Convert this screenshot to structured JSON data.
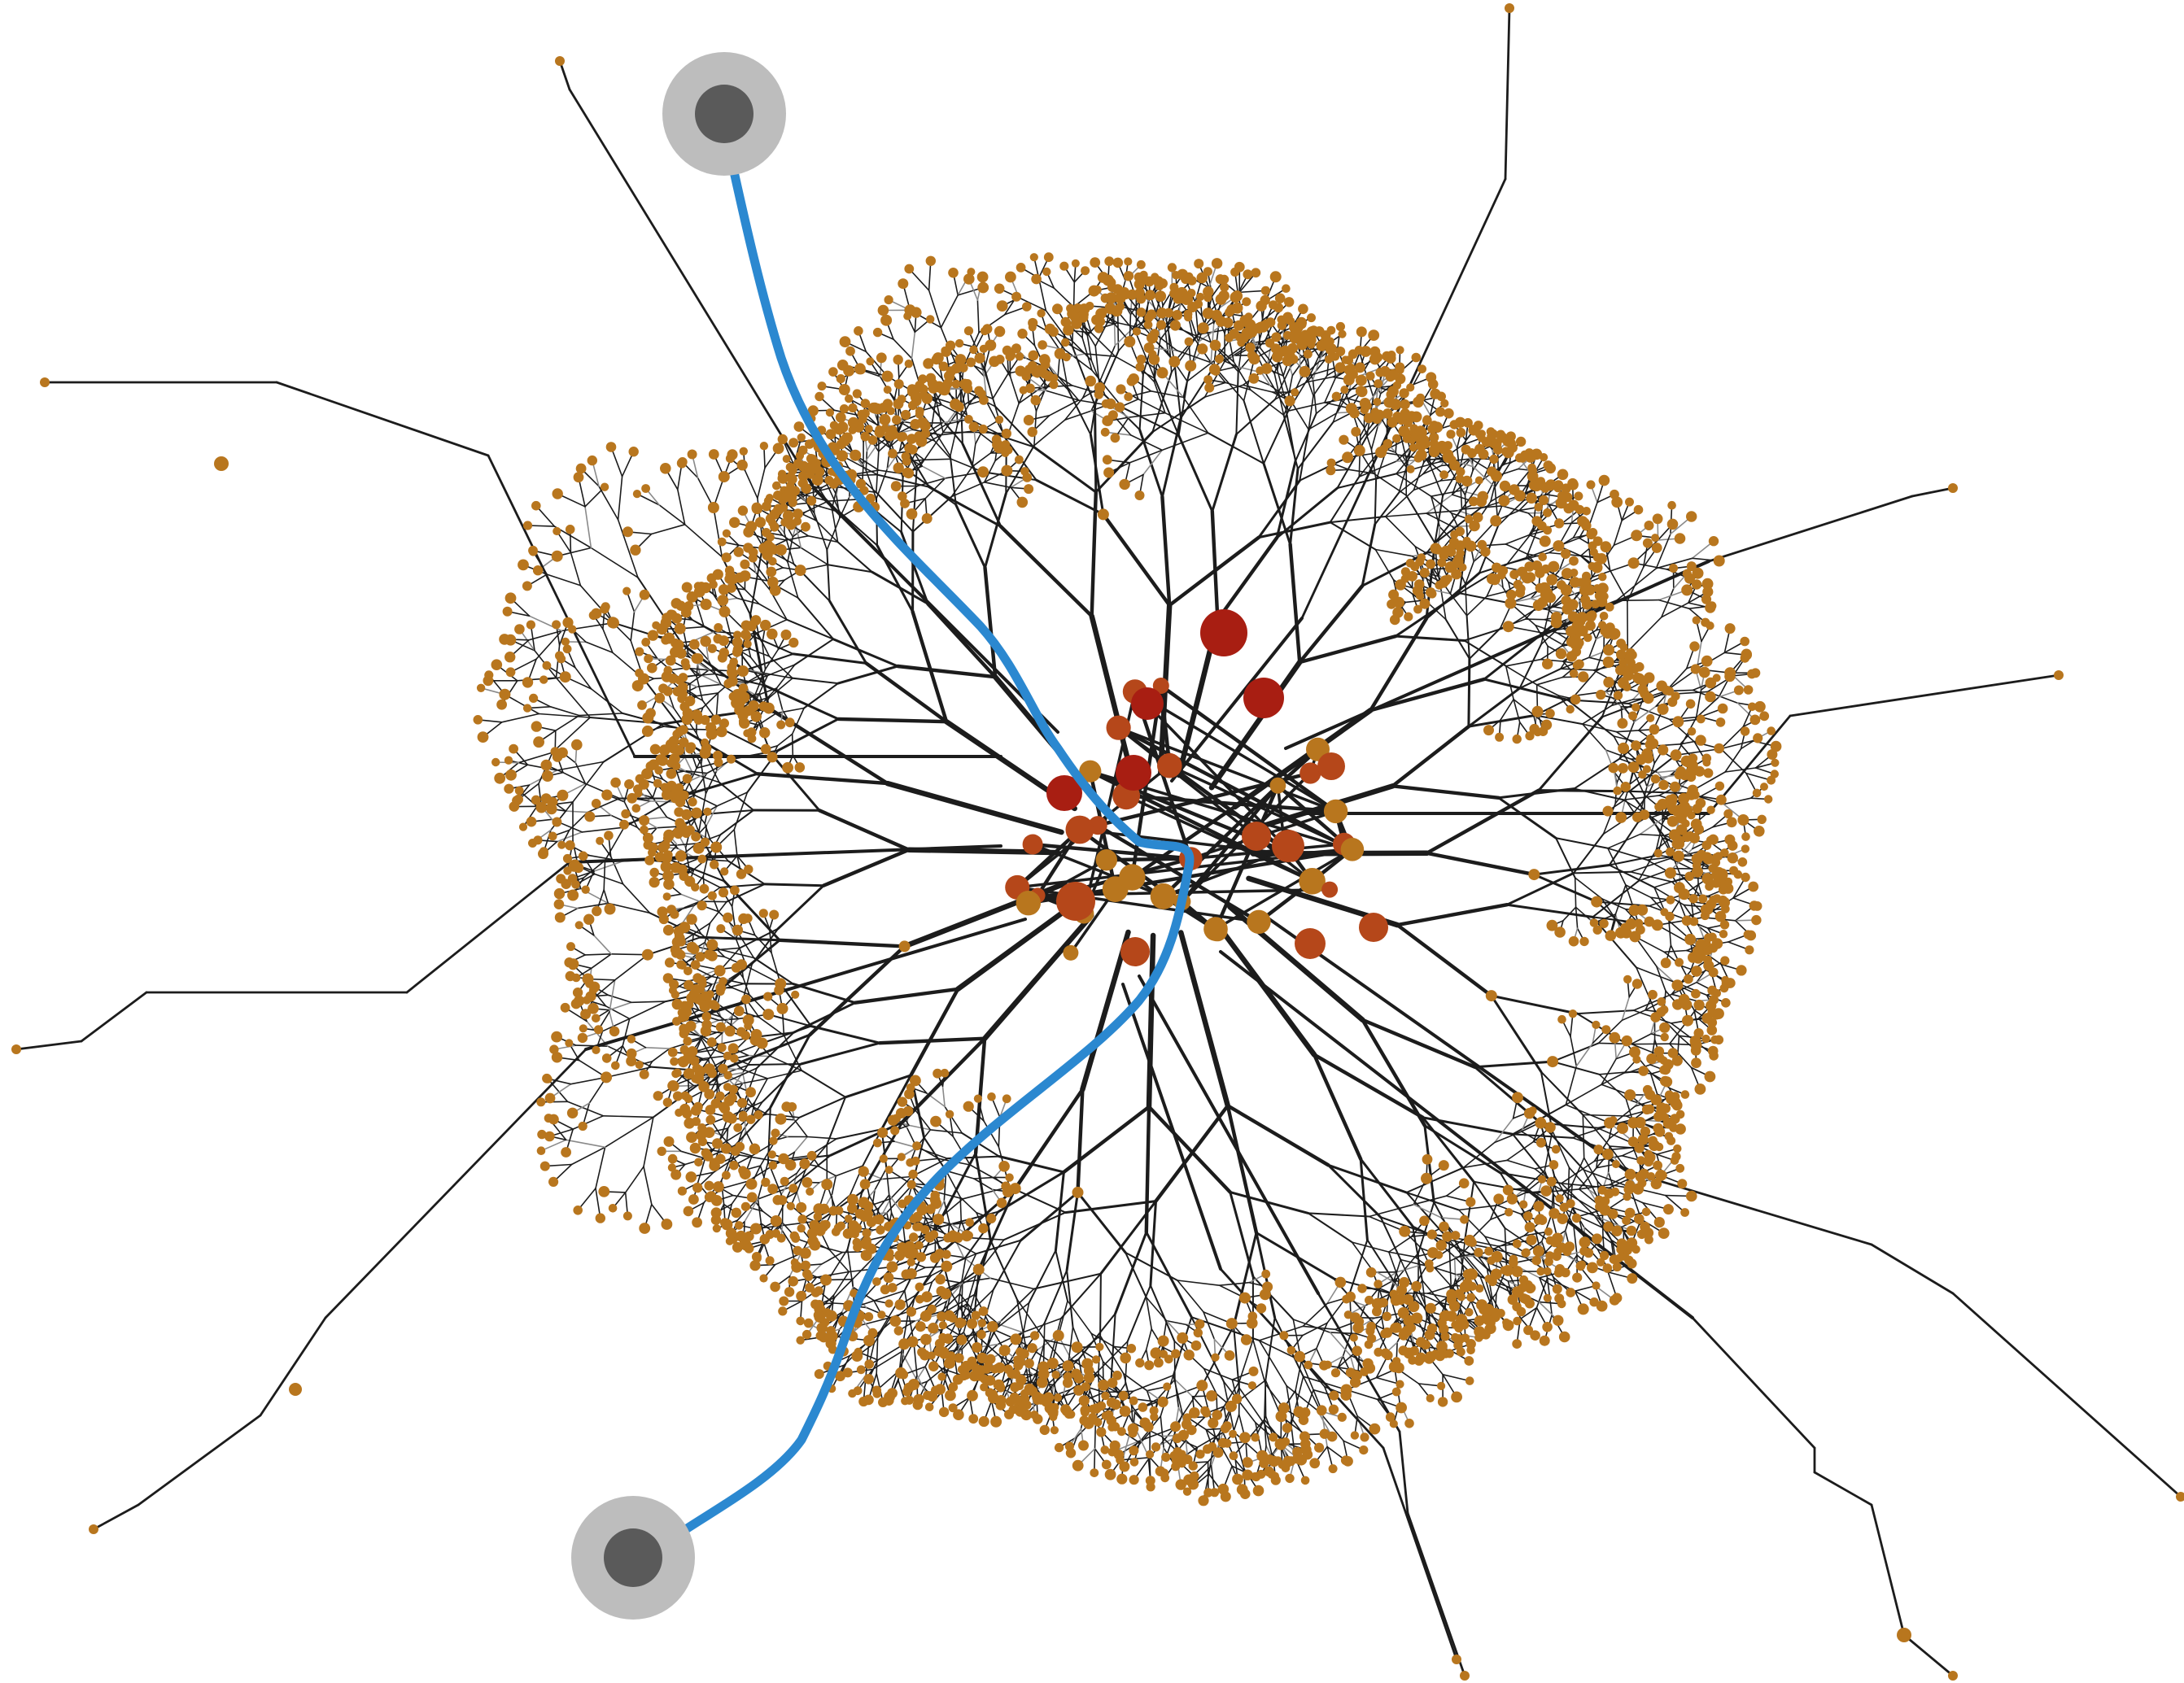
{
  "figure": {
    "kind": "branching network with a highlighted path",
    "colors": {
      "background": "#ffffff",
      "branch": "#1c1c1c",
      "leaf_node": "#b8761e",
      "hub_node": "#b5471a",
      "core_node": "#a81e12",
      "route": "#2b88d0",
      "terminal_ring": "#bdbdbd",
      "terminal_core": "#5a5a5a"
    },
    "terminals": [
      {
        "id": "terminal-top",
        "role": "route start"
      },
      {
        "id": "terminal-bottom",
        "role": "route end"
      }
    ],
    "route": {
      "from": "terminal-top",
      "to": "terminal-bottom",
      "via": "center hubs"
    },
    "core_node_count": 5
  }
}
